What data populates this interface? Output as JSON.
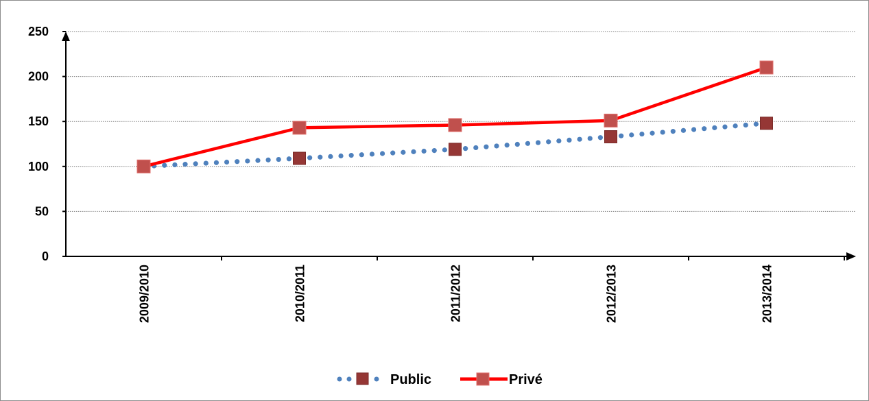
{
  "chart_data": {
    "type": "line",
    "title": "",
    "xlabel": "",
    "ylabel": "",
    "categories": [
      "2009/2010",
      "2010/2011",
      "2011/2012",
      "2012/2013",
      "2013/2014"
    ],
    "ylim": [
      0,
      250
    ],
    "yticks": [
      "0",
      "50",
      "100",
      "150",
      "200",
      "250"
    ],
    "grid": "horizontal dotted",
    "legend_position": "bottom",
    "series": [
      {
        "name": "Public",
        "values": [
          100,
          109,
          119,
          133,
          148
        ],
        "line_color": "#4f81bd",
        "line_style": "dotted",
        "marker_color": "#953735",
        "marker": "square"
      },
      {
        "name": "Privé",
        "values": [
          100,
          143,
          146,
          151,
          210
        ],
        "line_color": "#ff0000",
        "line_style": "solid",
        "marker_color": "#c0504d",
        "marker": "square"
      }
    ]
  }
}
